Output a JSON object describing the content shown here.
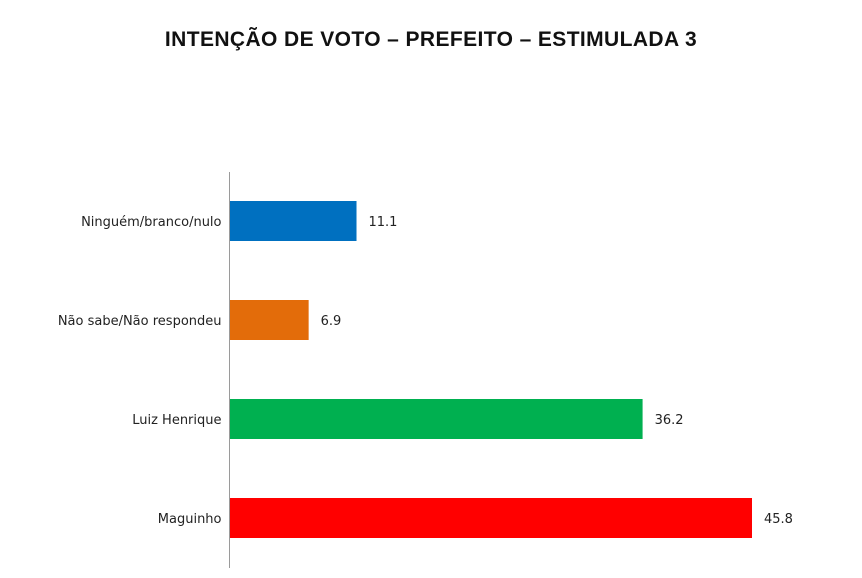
{
  "chart_data": {
    "type": "bar",
    "orientation": "horizontal",
    "title": "INTENÇÃO DE VOTO – PREFEITO – ESTIMULADA 3",
    "categories": [
      "Ninguém/branco/nulo",
      "Não sabe/Não respondeu",
      "Luiz Henrique",
      "Maguinho"
    ],
    "values": [
      11.1,
      6.9,
      36.2,
      45.8
    ],
    "colors": [
      "#0070C0",
      "#E36C0A",
      "#00B050",
      "#FF0000"
    ],
    "grid": false,
    "legend": "none",
    "xlim": [
      0,
      45.8
    ]
  }
}
